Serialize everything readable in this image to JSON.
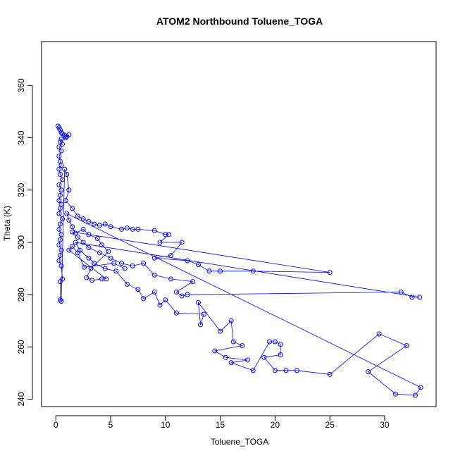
{
  "chart_data": {
    "type": "scatter",
    "title": "ATOM2 Northbound Toluene_TOGA",
    "xlabel": "Toluene_TOGA",
    "ylabel": "Theta (K)",
    "xlim": [
      -1.3,
      34.7
    ],
    "ylim": [
      237.2,
      376.8
    ],
    "xticks": [
      0,
      5,
      10,
      15,
      20,
      25,
      30
    ],
    "yticks": [
      240,
      260,
      280,
      300,
      320,
      340,
      360
    ],
    "series": [
      {
        "name": "Toluene_TOGA vs Theta",
        "style": "line+circle",
        "color": "#0000ff",
        "points": [
          [
            0.2,
            344.5
          ],
          [
            0.3,
            343.8
          ],
          [
            0.4,
            343.0
          ],
          [
            0.5,
            342.0
          ],
          [
            0.6,
            341.5
          ],
          [
            0.8,
            341.0
          ],
          [
            1.0,
            340.5
          ],
          [
            1.2,
            341.2
          ],
          [
            0.9,
            340.0
          ],
          [
            0.5,
            339.5
          ],
          [
            0.4,
            338.5
          ],
          [
            0.6,
            337.5
          ],
          [
            0.3,
            336.5
          ],
          [
            0.5,
            335.0
          ],
          [
            0.3,
            333.0
          ],
          [
            0.4,
            331.0
          ],
          [
            0.5,
            329.5
          ],
          [
            0.3,
            328.0
          ],
          [
            0.4,
            326.0
          ],
          [
            0.6,
            324.0
          ],
          [
            0.3,
            322.0
          ],
          [
            0.5,
            320.0
          ],
          [
            0.4,
            318.0
          ],
          [
            0.3,
            316.0
          ],
          [
            0.5,
            314.5
          ],
          [
            0.4,
            313.0
          ],
          [
            0.3,
            311.0
          ],
          [
            0.6,
            309.0
          ],
          [
            0.4,
            307.0
          ],
          [
            0.3,
            305.0
          ],
          [
            0.5,
            303.0
          ],
          [
            0.4,
            301.0
          ],
          [
            0.3,
            299.0
          ],
          [
            0.5,
            297.0
          ],
          [
            0.4,
            295.0
          ],
          [
            0.3,
            293.0
          ],
          [
            0.5,
            291.0
          ],
          [
            0.6,
            286.0
          ],
          [
            0.4,
            285.0
          ],
          [
            0.4,
            278.0
          ],
          [
            0.5,
            277.5
          ],
          [
            0.8,
            328.0
          ],
          [
            1.0,
            326.0
          ],
          [
            1.2,
            320.0
          ],
          [
            0.9,
            316.0
          ],
          [
            1.5,
            313.0
          ],
          [
            2.0,
            310.0
          ],
          [
            2.5,
            309.0
          ],
          [
            3.0,
            308.0
          ],
          [
            3.5,
            307.0
          ],
          [
            4.0,
            306.5
          ],
          [
            4.5,
            307.0
          ],
          [
            5.0,
            306.0
          ],
          [
            6.0,
            305.0
          ],
          [
            6.5,
            305.5
          ],
          [
            7.0,
            305.0
          ],
          [
            7.5,
            305.0
          ],
          [
            9.0,
            304.5
          ],
          [
            10.0,
            303.0
          ],
          [
            10.3,
            303.0
          ],
          [
            9.5,
            300.0
          ],
          [
            11.5,
            300.0
          ],
          [
            10.5,
            295.0
          ],
          [
            9.0,
            294.0
          ],
          [
            12.0,
            293.0
          ],
          [
            13.0,
            291.5
          ],
          [
            14.0,
            289.0
          ],
          [
            15.0,
            289.0
          ],
          [
            18.0,
            289.0
          ],
          [
            25.0,
            288.5
          ],
          [
            1.5,
            304.0
          ],
          [
            2.0,
            302.0
          ],
          [
            2.5,
            300.0
          ],
          [
            3.0,
            298.0
          ],
          [
            4.0,
            296.0
          ],
          [
            5.0,
            294.0
          ],
          [
            6.0,
            292.0
          ],
          [
            7.0,
            291.0
          ],
          [
            8.0,
            292.0
          ],
          [
            9.0,
            287.5
          ],
          [
            10.5,
            286.0
          ],
          [
            12.5,
            285.0
          ],
          [
            11.0,
            281.0
          ],
          [
            11.5,
            279.5
          ],
          [
            12.0,
            280.0
          ],
          [
            31.5,
            281.0
          ],
          [
            32.5,
            279.0
          ],
          [
            33.2,
            279.0
          ],
          [
            1.8,
            300.0
          ],
          [
            2.2,
            297.0
          ],
          [
            3.0,
            294.0
          ],
          [
            3.5,
            292.0
          ],
          [
            4.5,
            290.0
          ],
          [
            5.5,
            289.0
          ],
          [
            6.5,
            284.0
          ],
          [
            7.5,
            282.0
          ],
          [
            8.0,
            278.5
          ],
          [
            9.0,
            281.0
          ],
          [
            9.5,
            276.0
          ],
          [
            10.0,
            278.0
          ],
          [
            11.0,
            273.0
          ],
          [
            13.5,
            272.5
          ],
          [
            13.2,
            268.5
          ],
          [
            13.0,
            277.0
          ],
          [
            15.0,
            266.0
          ],
          [
            16.0,
            270.0
          ],
          [
            16.2,
            262.0
          ],
          [
            17.0,
            260.5
          ],
          [
            14.5,
            258.5
          ],
          [
            15.5,
            256.0
          ],
          [
            17.5,
            255.0
          ],
          [
            16.0,
            254.0
          ],
          [
            18.0,
            251.0
          ],
          [
            19.5,
            262.0
          ],
          [
            20.0,
            262.0
          ],
          [
            20.5,
            261.0
          ],
          [
            20.5,
            257.0
          ],
          [
            19.0,
            256.0
          ],
          [
            20.0,
            251.0
          ],
          [
            21.0,
            251.0
          ],
          [
            22.0,
            251.0
          ],
          [
            25.0,
            249.5
          ],
          [
            29.5,
            265.0
          ],
          [
            32.0,
            260.5
          ],
          [
            28.5,
            250.5
          ],
          [
            31.0,
            242.0
          ],
          [
            32.8,
            241.5
          ],
          [
            33.3,
            244.5
          ],
          [
            1.0,
            311.0
          ],
          [
            1.2,
            308.5
          ],
          [
            1.5,
            306.0
          ],
          [
            1.8,
            303.5
          ],
          [
            2.5,
            305.0
          ],
          [
            3.0,
            303.0
          ],
          [
            3.8,
            301.5
          ],
          [
            4.2,
            299.0
          ],
          [
            4.8,
            296.5
          ],
          [
            3.2,
            290.0
          ],
          [
            2.8,
            286.5
          ],
          [
            3.3,
            285.5
          ],
          [
            4.2,
            286.0
          ],
          [
            4.6,
            286.0
          ],
          [
            1.2,
            297.0
          ],
          [
            1.5,
            298.5
          ],
          [
            2.0,
            296.0
          ],
          [
            2.6,
            290.5
          ],
          [
            5.3,
            292.0
          ],
          [
            6.3,
            290.0
          ]
        ]
      }
    ]
  }
}
